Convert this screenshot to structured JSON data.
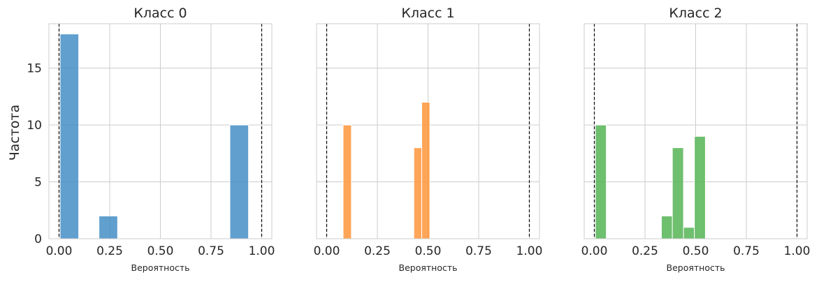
{
  "figure": {
    "ylabel": "Частота"
  },
  "colors": {
    "class0": "#3a87c3",
    "class1": "#ff8f2e",
    "class2": "#4aaf4a",
    "grid": "#cccccc",
    "refline": "#000000"
  },
  "chart_data": [
    {
      "type": "bar",
      "title": "Класс 0",
      "xlabel": "Вероятность",
      "ylabel": "Частота",
      "xlim": [
        -0.05,
        1.05
      ],
      "ylim": [
        0,
        18.9
      ],
      "xticks": [
        "0.00",
        "0.25",
        "0.50",
        "0.75",
        "1.00"
      ],
      "xtick_values": [
        0,
        0.25,
        0.5,
        0.75,
        1.0
      ],
      "yticks": [
        "0",
        "5",
        "10",
        "15"
      ],
      "ytick_values": [
        0,
        5,
        10,
        15
      ],
      "vlines": [
        0,
        1
      ],
      "grid": true,
      "color": "#3a87c3",
      "bins": [
        {
          "x0": 0.005,
          "x1": 0.097,
          "count": 18
        },
        {
          "x0": 0.197,
          "x1": 0.289,
          "count": 2
        },
        {
          "x0": 0.843,
          "x1": 0.935,
          "count": 10
        }
      ]
    },
    {
      "type": "bar",
      "title": "Класс 1",
      "xlabel": "Вероятность",
      "xlim": [
        -0.05,
        1.05
      ],
      "ylim": [
        0,
        18.9
      ],
      "xticks": [
        "0.00",
        "0.25",
        "0.50",
        "0.75",
        "1.00"
      ],
      "xtick_values": [
        0,
        0.25,
        0.5,
        0.75,
        1.0
      ],
      "vlines": [
        0,
        1
      ],
      "grid": true,
      "color": "#ff8f2e",
      "bins": [
        {
          "x0": 0.081,
          "x1": 0.122,
          "count": 10
        },
        {
          "x0": 0.43,
          "x1": 0.469,
          "count": 8
        },
        {
          "x0": 0.469,
          "x1": 0.509,
          "count": 12
        }
      ]
    },
    {
      "type": "bar",
      "title": "Класс 2",
      "xlabel": "Вероятность",
      "xlim": [
        -0.05,
        1.05
      ],
      "ylim": [
        0,
        18.9
      ],
      "xticks": [
        "0.00",
        "0.25",
        "0.50",
        "0.75",
        "1.00"
      ],
      "xtick_values": [
        0,
        0.25,
        0.5,
        0.75,
        1.0
      ],
      "vlines": [
        0,
        1
      ],
      "grid": true,
      "color": "#4aaf4a",
      "bins": [
        {
          "x0": 0.005,
          "x1": 0.059,
          "count": 10
        },
        {
          "x0": 0.331,
          "x1": 0.385,
          "count": 2
        },
        {
          "x0": 0.385,
          "x1": 0.44,
          "count": 8
        },
        {
          "x0": 0.44,
          "x1": 0.494,
          "count": 1
        },
        {
          "x0": 0.494,
          "x1": 0.548,
          "count": 9
        }
      ]
    }
  ]
}
